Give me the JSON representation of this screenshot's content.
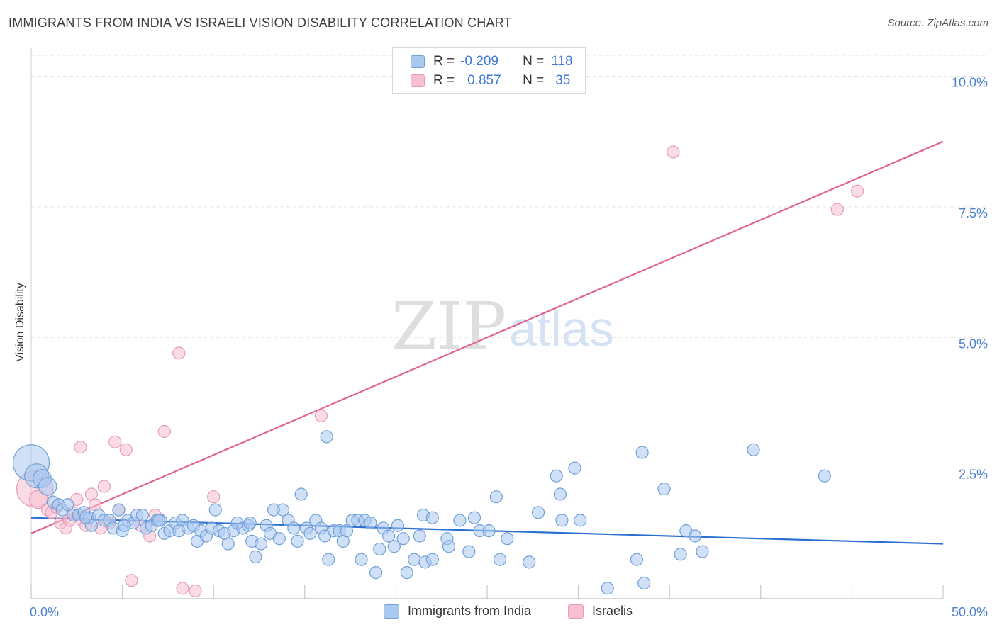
{
  "title": "IMMIGRANTS FROM INDIA VS ISRAELI VISION DISABILITY CORRELATION CHART",
  "source": "Source: ZipAtlas.com",
  "watermark": {
    "part1": "ZIP",
    "part2": "atlas"
  },
  "legend": {
    "row1": {
      "r_label": "R =",
      "r_value": "-0.209",
      "n_label": "N =",
      "n_value": "118"
    },
    "row2": {
      "r_label": "R =",
      "r_value": "0.857",
      "n_label": "N =",
      "n_value": "35"
    }
  },
  "bottom_legend": {
    "india": "Immigrants from India",
    "israelis": "Israelis"
  },
  "colors": {
    "india_fill": "#a9c9f0",
    "india_stroke": "#6f9fd8",
    "india_line": "#2b6fd0",
    "israel_fill": "#f7bfd0",
    "israel_stroke": "#e79ab4",
    "israel_line": "#e06690",
    "tick_text": "#4a7fd0",
    "grid": "#e3e3e3"
  },
  "chart_data": {
    "type": "scatter",
    "title": "IMMIGRANTS FROM INDIA VS ISRAELI VISION DISABILITY CORRELATION CHART",
    "xlabel": "",
    "ylabel": "Vision Disability",
    "xlim": [
      0,
      50
    ],
    "ylim": [
      0,
      10.4
    ],
    "x_tick_labels": {
      "min": "0.0%",
      "max": "50.0%"
    },
    "y_ticks": [
      {
        "value": 2.5,
        "label": "2.5%"
      },
      {
        "value": 5.0,
        "label": "5.0%"
      },
      {
        "value": 7.5,
        "label": "7.5%"
      },
      {
        "value": 10.0,
        "label": "10.0%"
      }
    ],
    "series": [
      {
        "name": "Immigrants from India",
        "R": -0.209,
        "N": 118,
        "trend": {
          "x": [
            0,
            50
          ],
          "y": [
            1.55,
            1.05
          ]
        },
        "points": [
          [
            0,
            2.6,
            3
          ],
          [
            0.3,
            2.35,
            2
          ],
          [
            0.6,
            2.3,
            1.5
          ],
          [
            0.9,
            2.15,
            1.5
          ],
          [
            1.2,
            1.85,
            1
          ],
          [
            1.5,
            1.8,
            1
          ],
          [
            1.7,
            1.7,
            1
          ],
          [
            2.0,
            1.8,
            1
          ],
          [
            2.3,
            1.6,
            1
          ],
          [
            2.6,
            1.6,
            1
          ],
          [
            2.9,
            1.65,
            1
          ],
          [
            3.2,
            1.55,
            1
          ],
          [
            3.3,
            1.4,
            1
          ],
          [
            3.7,
            1.6,
            1
          ],
          [
            4.0,
            1.5,
            1
          ],
          [
            4.3,
            1.5,
            1
          ],
          [
            4.5,
            1.35,
            1
          ],
          [
            4.8,
            1.7,
            1
          ],
          [
            5.0,
            1.3,
            1
          ],
          [
            5.3,
            1.5,
            1
          ],
          [
            5.6,
            1.45,
            1
          ],
          [
            5.8,
            1.6,
            1
          ],
          [
            6.1,
            1.6,
            1
          ],
          [
            6.3,
            1.35,
            1
          ],
          [
            6.6,
            1.4,
            1
          ],
          [
            6.9,
            1.5,
            1
          ],
          [
            7.1,
            1.5,
            1
          ],
          [
            7.3,
            1.25,
            1
          ],
          [
            7.6,
            1.3,
            1
          ],
          [
            7.9,
            1.45,
            1
          ],
          [
            8.1,
            1.3,
            1
          ],
          [
            8.3,
            1.5,
            1
          ],
          [
            8.6,
            1.35,
            1
          ],
          [
            8.9,
            1.4,
            1
          ],
          [
            9.1,
            1.1,
            1
          ],
          [
            9.3,
            1.3,
            1
          ],
          [
            9.6,
            1.2,
            1
          ],
          [
            9.9,
            1.35,
            1
          ],
          [
            10.1,
            1.7,
            1
          ],
          [
            10.3,
            1.3,
            1
          ],
          [
            10.6,
            1.25,
            1
          ],
          [
            10.8,
            1.05,
            1
          ],
          [
            11.1,
            1.3,
            1
          ],
          [
            11.3,
            1.45,
            1
          ],
          [
            11.6,
            1.35,
            1
          ],
          [
            11.9,
            1.4,
            1
          ],
          [
            12.1,
            1.1,
            1
          ],
          [
            12.3,
            0.8,
            1
          ],
          [
            12.6,
            1.05,
            1
          ],
          [
            12.9,
            1.4,
            1
          ],
          [
            13.1,
            1.25,
            1
          ],
          [
            13.3,
            1.7,
            1
          ],
          [
            13.6,
            1.15,
            1
          ],
          [
            13.8,
            1.7,
            1
          ],
          [
            14.1,
            1.5,
            1
          ],
          [
            14.4,
            1.35,
            1
          ],
          [
            14.6,
            1.1,
            1
          ],
          [
            14.8,
            2.0,
            1
          ],
          [
            15.1,
            1.35,
            1
          ],
          [
            15.3,
            1.25,
            1
          ],
          [
            15.6,
            1.5,
            1
          ],
          [
            15.9,
            1.35,
            1
          ],
          [
            16.1,
            1.2,
            1
          ],
          [
            16.3,
            0.75,
            1
          ],
          [
            16.6,
            1.3,
            1
          ],
          [
            16.9,
            1.3,
            1
          ],
          [
            17.1,
            1.1,
            1
          ],
          [
            17.3,
            1.3,
            1
          ],
          [
            17.6,
            1.5,
            1
          ],
          [
            17.9,
            1.5,
            1
          ],
          [
            18.1,
            0.75,
            1
          ],
          [
            18.3,
            1.5,
            1
          ],
          [
            18.6,
            1.45,
            1
          ],
          [
            18.9,
            0.5,
            1
          ],
          [
            19.1,
            0.95,
            1
          ],
          [
            19.3,
            1.35,
            1
          ],
          [
            19.6,
            1.2,
            1
          ],
          [
            19.9,
            1.0,
            1
          ],
          [
            20.1,
            1.4,
            1
          ],
          [
            20.4,
            1.15,
            1
          ],
          [
            20.6,
            0.5,
            1
          ],
          [
            21.0,
            0.75,
            1
          ],
          [
            21.3,
            1.2,
            1
          ],
          [
            21.6,
            0.7,
            1
          ],
          [
            21.5,
            1.6,
            1
          ],
          [
            22.0,
            1.55,
            1
          ],
          [
            22.8,
            1.15,
            1
          ],
          [
            22.9,
            1.0,
            1
          ],
          [
            23.5,
            1.5,
            1
          ],
          [
            24.3,
            1.55,
            1
          ],
          [
            24.0,
            0.9,
            1
          ],
          [
            24.6,
            1.3,
            1
          ],
          [
            25.1,
            1.3,
            1
          ],
          [
            25.7,
            0.75,
            1
          ],
          [
            25.5,
            1.95,
            1
          ],
          [
            26.1,
            1.15,
            1
          ],
          [
            27.3,
            0.7,
            1
          ],
          [
            27.8,
            1.65,
            1
          ],
          [
            28.8,
            2.35,
            1
          ],
          [
            29.0,
            2.0,
            1
          ],
          [
            29.1,
            1.5,
            1
          ],
          [
            29.8,
            2.5,
            1
          ],
          [
            30.1,
            1.5,
            1
          ],
          [
            31.6,
            0.2,
            1
          ],
          [
            33.5,
            2.8,
            1
          ],
          [
            33.2,
            0.75,
            1
          ],
          [
            33.6,
            0.3,
            1
          ],
          [
            34.7,
            2.1,
            1
          ],
          [
            35.6,
            0.85,
            1
          ],
          [
            35.9,
            1.3,
            1
          ],
          [
            36.4,
            1.2,
            1
          ],
          [
            36.8,
            0.9,
            1
          ],
          [
            39.6,
            2.85,
            1
          ],
          [
            43.5,
            2.35,
            1
          ],
          [
            16.2,
            3.1,
            1
          ],
          [
            7.0,
            1.5,
            1
          ],
          [
            3.0,
            1.55,
            1
          ],
          [
            5.1,
            1.4,
            1
          ],
          [
            22.0,
            0.75,
            1
          ],
          [
            12.0,
            1.45,
            1
          ]
        ]
      },
      {
        "name": "Israelis",
        "R": 0.857,
        "N": 35,
        "trend": {
          "x": [
            0,
            50
          ],
          "y": [
            1.25,
            8.75
          ]
        },
        "points": [
          [
            0.2,
            2.1,
            3
          ],
          [
            0.4,
            1.9,
            1.5
          ],
          [
            0.6,
            2.3,
            1
          ],
          [
            0.9,
            1.7,
            1
          ],
          [
            1.1,
            1.65,
            1
          ],
          [
            1.4,
            1.75,
            1
          ],
          [
            1.6,
            1.45,
            1
          ],
          [
            1.9,
            1.35,
            1
          ],
          [
            2.1,
            1.5,
            1
          ],
          [
            2.3,
            1.65,
            1
          ],
          [
            2.5,
            1.9,
            1
          ],
          [
            2.7,
            2.9,
            1
          ],
          [
            2.8,
            1.5,
            1
          ],
          [
            3.0,
            1.4,
            1
          ],
          [
            3.3,
            2.0,
            1
          ],
          [
            3.5,
            1.8,
            1
          ],
          [
            3.8,
            1.35,
            1
          ],
          [
            4.0,
            2.15,
            1
          ],
          [
            4.3,
            1.45,
            1
          ],
          [
            4.6,
            3.0,
            1
          ],
          [
            4.8,
            1.7,
            1
          ],
          [
            5.2,
            2.85,
            1
          ],
          [
            5.5,
            0.35,
            1
          ],
          [
            6.0,
            1.4,
            1
          ],
          [
            6.5,
            1.2,
            1
          ],
          [
            6.8,
            1.6,
            1
          ],
          [
            7.3,
            3.2,
            1
          ],
          [
            8.1,
            4.7,
            1
          ],
          [
            8.3,
            0.2,
            1
          ],
          [
            9.0,
            0.15,
            1
          ],
          [
            10.0,
            1.95,
            1
          ],
          [
            15.9,
            3.5,
            1
          ],
          [
            35.2,
            8.55,
            1
          ],
          [
            44.2,
            7.45,
            1
          ],
          [
            45.3,
            7.8,
            1
          ]
        ]
      }
    ]
  }
}
